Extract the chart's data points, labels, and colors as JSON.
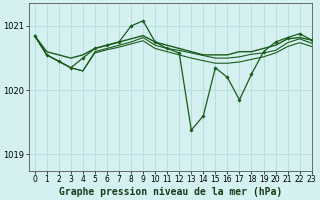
{
  "title": "Graphe pression niveau de la mer (hPa)",
  "bg_color": "#d5f0f0",
  "grid_color": "#b8dede",
  "line_color": "#1a5c1a",
  "xlim": [
    -0.5,
    23
  ],
  "ylim": [
    1018.75,
    1021.35
  ],
  "yticks": [
    1019,
    1020,
    1021
  ],
  "xticks": [
    0,
    1,
    2,
    3,
    4,
    5,
    6,
    7,
    8,
    9,
    10,
    11,
    12,
    13,
    14,
    15,
    16,
    17,
    18,
    19,
    20,
    21,
    22,
    23
  ],
  "series": [
    {
      "y": [
        1020.85,
        1020.6,
        1020.55,
        1020.5,
        1020.55,
        1020.65,
        1020.7,
        1020.75,
        1020.8,
        1020.85,
        1020.75,
        1020.7,
        1020.65,
        1020.6,
        1020.55,
        1020.55,
        1020.55,
        1020.6,
        1020.6,
        1020.65,
        1020.7,
        1020.8,
        1020.82,
        1020.78
      ],
      "marker": false,
      "lw": 1.0
    },
    {
      "y": [
        1020.85,
        1020.55,
        1020.45,
        1020.35,
        1020.5,
        1020.65,
        1020.7,
        1020.75,
        1021.0,
        1021.08,
        1020.75,
        1020.65,
        1020.58,
        1019.38,
        1019.6,
        1020.35,
        1020.2,
        1019.85,
        1020.25,
        1020.6,
        1020.75,
        1020.82,
        1020.88,
        1020.78
      ],
      "marker": true,
      "lw": 0.9
    },
    {
      "y": [
        1020.85,
        1020.55,
        1020.45,
        1020.35,
        1020.3,
        1020.6,
        1020.65,
        1020.7,
        1020.75,
        1020.82,
        1020.7,
        1020.65,
        1020.62,
        1020.58,
        1020.54,
        1020.5,
        1020.5,
        1020.52,
        1020.56,
        1020.58,
        1020.62,
        1020.74,
        1020.8,
        1020.73
      ],
      "marker": false,
      "lw": 0.8
    },
    {
      "y": [
        1020.85,
        1020.55,
        1020.45,
        1020.35,
        1020.3,
        1020.58,
        1020.63,
        1020.67,
        1020.72,
        1020.77,
        1020.65,
        1020.6,
        1020.55,
        1020.5,
        1020.46,
        1020.42,
        1020.42,
        1020.44,
        1020.48,
        1020.52,
        1020.58,
        1020.68,
        1020.74,
        1020.68
      ],
      "marker": false,
      "lw": 0.8
    }
  ],
  "title_fontsize": 7,
  "tick_fontsize": 5.5
}
